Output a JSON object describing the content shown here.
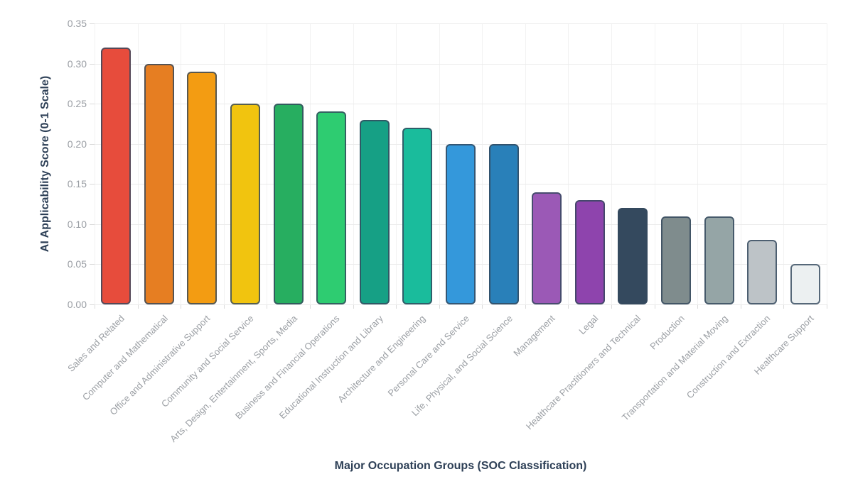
{
  "chart_data": {
    "type": "bar",
    "title": "",
    "xlabel": "Major Occupation Groups (SOC Classification)",
    "ylabel": "AI Applicability Score (0-1 Scale)",
    "ylim": [
      0,
      0.35
    ],
    "ytick_labels": [
      "0.00",
      "0.05",
      "0.10",
      "0.15",
      "0.20",
      "0.25",
      "0.30",
      "0.35"
    ],
    "yticks": [
      0.0,
      0.05,
      0.1,
      0.15,
      0.2,
      0.25,
      0.3,
      0.35
    ],
    "grid": true,
    "legend": false,
    "categories": [
      "Sales and Related",
      "Computer and Mathematical",
      "Office and Administrative Support",
      "Community and Social Service",
      "Arts, Design, Entertainment, Sports, Media",
      "Business and Financial Operations",
      "Educational Instruction and Library",
      "Architecture and Engineering",
      "Personal Care and Service",
      "Life, Physical, and Social Science",
      "Management",
      "Legal",
      "Healthcare Practitioners and Technical",
      "Production",
      "Transportation and Material Moving",
      "Construction and Extraction",
      "Healthcare Support"
    ],
    "values": [
      0.32,
      0.3,
      0.29,
      0.25,
      0.25,
      0.24,
      0.23,
      0.22,
      0.2,
      0.2,
      0.14,
      0.13,
      0.12,
      0.11,
      0.11,
      0.08,
      0.05
    ],
    "colors": [
      "#e74c3c",
      "#e67e22",
      "#f39c12",
      "#f1c40f",
      "#27ae60",
      "#2ecc71",
      "#16a085",
      "#1abc9c",
      "#3498db",
      "#2980b9",
      "#9b59b6",
      "#8e44ad",
      "#34495e",
      "#7f8c8d",
      "#95a5a6",
      "#bdc3c7",
      "#ecf0f1"
    ],
    "bar_border_color": "rgba(52,73,94,0.82)",
    "axis_title_color": "#2e4057",
    "tick_label_color": "#999da3",
    "gridline_color": "#ebebeb"
  }
}
